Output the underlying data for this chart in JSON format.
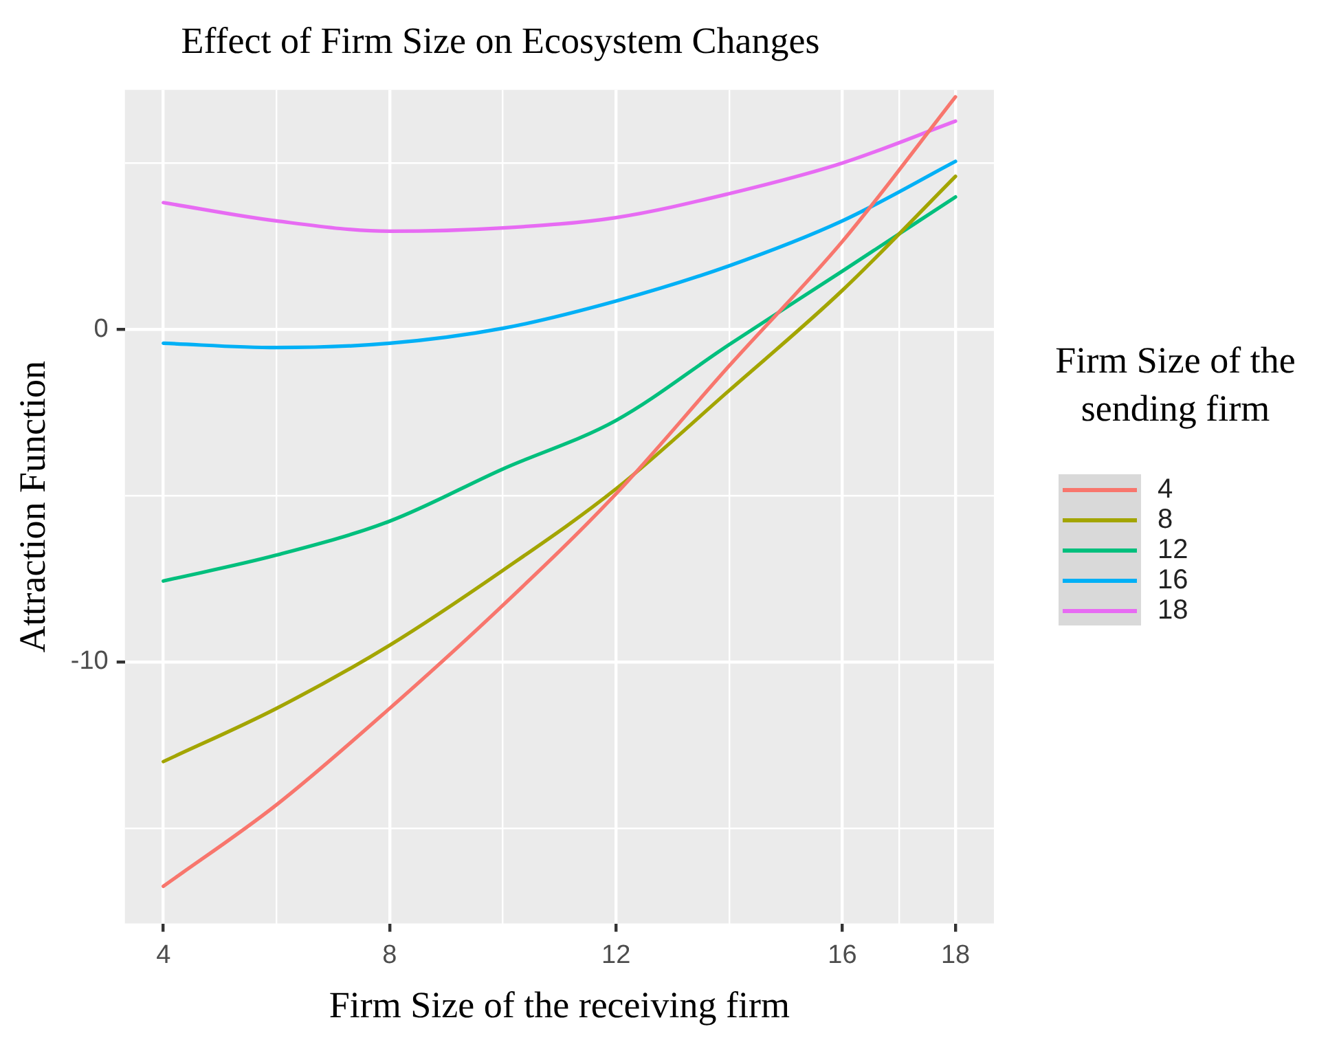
{
  "chart_data": {
    "type": "line",
    "title": "Effect of Firm Size on Ecosystem Changes",
    "xlabel": "Firm Size of the receiving firm",
    "ylabel": "Attraction Function",
    "legend_title": "Firm Size of the sending firm",
    "x": [
      4,
      6,
      8,
      10,
      12,
      14,
      16,
      18
    ],
    "series": [
      {
        "name": "4",
        "color": "#f8766d",
        "values": [
          -16.75,
          -14.3,
          -11.4,
          -8.3,
          -4.95,
          -1.1,
          2.64,
          6.99
        ]
      },
      {
        "name": "8",
        "color": "#a3a500",
        "values": [
          -13.0,
          -11.4,
          -9.5,
          -7.25,
          -4.8,
          -1.84,
          1.17,
          4.6
        ]
      },
      {
        "name": "12",
        "color": "#00bf7d",
        "values": [
          -7.57,
          -6.79,
          -5.77,
          -4.2,
          -2.74,
          -0.46,
          1.75,
          3.98
        ]
      },
      {
        "name": "16",
        "color": "#00b0f6",
        "values": [
          -0.42,
          -0.55,
          -0.42,
          0.03,
          0.85,
          1.91,
          3.26,
          5.05
        ]
      },
      {
        "name": "18",
        "color": "#e76bf3",
        "values": [
          3.81,
          3.26,
          2.95,
          3.05,
          3.36,
          4.08,
          5.0,
          6.26
        ]
      }
    ],
    "xlim": [
      3.32,
      18.68
    ],
    "ylim": [
      -17.87,
      7.2
    ],
    "xticks": [
      4,
      {
        "value": 6,
        "label": null
      },
      8,
      {
        "value": 10,
        "label": null
      },
      12,
      {
        "value": 14,
        "label": null
      },
      16,
      {
        "value": 17,
        "label": null
      },
      18
    ],
    "yticks": [
      {
        "value": -15,
        "label": null
      },
      -10,
      {
        "value": -5,
        "label": null
      },
      0,
      {
        "value": 5,
        "label": null
      }
    ],
    "grid": true,
    "legend": "right",
    "marker": "none",
    "line_style": "solid"
  }
}
